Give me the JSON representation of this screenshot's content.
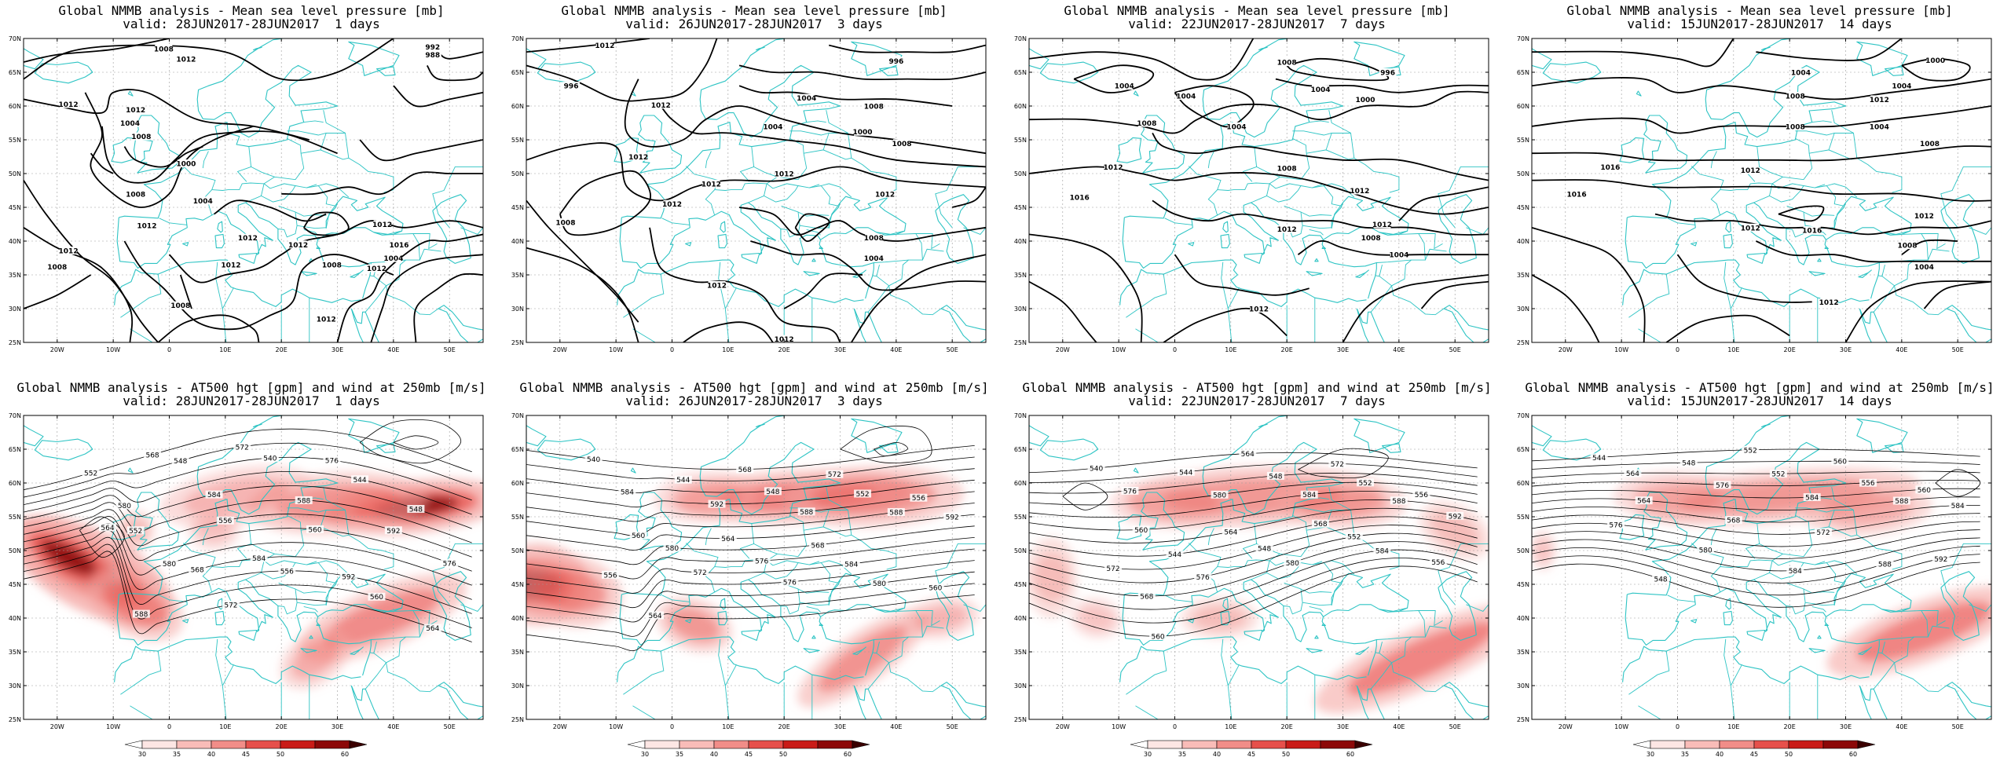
{
  "lat_labels": [
    "70N",
    "65N",
    "60N",
    "55N",
    "50N",
    "45N",
    "40N",
    "35N",
    "30N",
    "25N"
  ],
  "lon_labels": [
    "20W",
    "10W",
    "0",
    "10E",
    "20E",
    "30E",
    "40E",
    "50E"
  ],
  "colorbar_labels": [
    "30",
    "35",
    "40",
    "45",
    "50",
    "60"
  ],
  "colors": {
    "land": "#2ec4c4",
    "contour": "#000000",
    "jet": "#e0201e",
    "grid": "#9a9a9a"
  },
  "panels": [
    {
      "id": "mslp-1",
      "row": 0,
      "col": 0,
      "type": "mslp",
      "title_line1": "Global NMMB analysis - Mean sea level pressure [mb]",
      "title_line2": "valid: 28JUN2017-28JUN2017  1 days",
      "labels": [
        "1008",
        "1012",
        "992",
        "988",
        "1012",
        "1012",
        "1004",
        "1008",
        "1000",
        "1008",
        "1004",
        "1012",
        "1012",
        "1008",
        "1012",
        "1012",
        "1012",
        "1008",
        "1012",
        "1016",
        "1004",
        "1012",
        "1008",
        "1012"
      ]
    },
    {
      "id": "mslp-3",
      "row": 0,
      "col": 1,
      "type": "mslp",
      "title_line1": "Global NMMB analysis - Mean sea level pressure [mb]",
      "title_line2": "valid: 26JUN2017-28JUN2017  3 days",
      "labels": [
        "1012",
        "996",
        "996",
        "1012",
        "1004",
        "1008",
        "1004",
        "1000",
        "1008",
        "1012",
        "1012",
        "1008",
        "1012",
        "1012",
        "1012",
        "1008",
        "1004",
        "1012",
        "1012"
      ]
    },
    {
      "id": "mslp-7",
      "row": 0,
      "col": 2,
      "type": "mslp",
      "title_line1": "Global NMMB analysis - Mean sea level pressure [mb]",
      "title_line2": "valid: 22JUN2017-28JUN2017  7 days",
      "labels": [
        "1004",
        "1004",
        "1008",
        "1004",
        "1000",
        "996",
        "1008",
        "1004",
        "1012",
        "1008",
        "1012",
        "1016",
        "1012",
        "1012",
        "1008",
        "1004",
        "1012"
      ]
    },
    {
      "id": "mslp-14",
      "row": 0,
      "col": 3,
      "type": "mslp",
      "title_line1": "Global NMMB analysis - Mean sea level pressure [mb]",
      "title_line2": "valid: 15JUN2017-28JUN2017  14 days",
      "labels": [
        "1000",
        "1004",
        "1004",
        "1008",
        "1012",
        "1008",
        "1004",
        "1008",
        "1016",
        "1012",
        "1016",
        "1012",
        "1016",
        "1012",
        "1008",
        "1004",
        "1012"
      ]
    },
    {
      "id": "at500-1",
      "row": 1,
      "col": 0,
      "type": "at500",
      "title_line1": "Global NMMB analysis - AT500 hgt [gpm] and wind at 250mb [m/s]",
      "title_line2": "valid: 28JUN2017-28JUN2017  1 days",
      "labels": [
        "552",
        "548",
        "540",
        "544",
        "548",
        "552",
        "556",
        "560",
        "564",
        "568",
        "556",
        "560",
        "564",
        "568",
        "572",
        "576",
        "580",
        "584",
        "588",
        "592",
        "576",
        "580",
        "584",
        "592",
        "588",
        "572"
      ]
    },
    {
      "id": "at500-3",
      "row": 1,
      "col": 1,
      "type": "at500",
      "title_line1": "Global NMMB analysis - AT500 hgt [gpm] and wind at 250mb [m/s]",
      "title_line2": "valid: 26JUN2017-28JUN2017  3 days",
      "labels": [
        "540",
        "544",
        "548",
        "552",
        "556",
        "560",
        "564",
        "568",
        "556",
        "572",
        "576",
        "580",
        "560",
        "564",
        "568",
        "572",
        "584",
        "592",
        "588",
        "588",
        "592",
        "580",
        "576",
        "584"
      ]
    },
    {
      "id": "at500-7",
      "row": 1,
      "col": 2,
      "type": "at500",
      "title_line1": "Global NMMB analysis - AT500 hgt [gpm] and wind at 250mb [m/s]",
      "title_line2": "valid: 22JUN2017-28JUN2017  7 days",
      "labels": [
        "540",
        "544",
        "548",
        "552",
        "556",
        "560",
        "564",
        "568",
        "572",
        "576",
        "580",
        "584",
        "556",
        "560",
        "564",
        "572",
        "576",
        "580",
        "584",
        "588",
        "592",
        "544",
        "548",
        "552",
        "568"
      ]
    },
    {
      "id": "at500-14",
      "row": 1,
      "col": 3,
      "type": "at500",
      "title_line1": "Global NMMB analysis - AT500 hgt [gpm] and wind at 250mb [m/s]",
      "title_line2": "valid: 15JUN2017-28JUN2017  14 days",
      "labels": [
        "544",
        "548",
        "552",
        "556",
        "560",
        "564",
        "568",
        "572",
        "576",
        "580",
        "584",
        "588",
        "592",
        "548",
        "552",
        "560",
        "564",
        "576",
        "584",
        "588",
        "584"
      ]
    }
  ]
}
